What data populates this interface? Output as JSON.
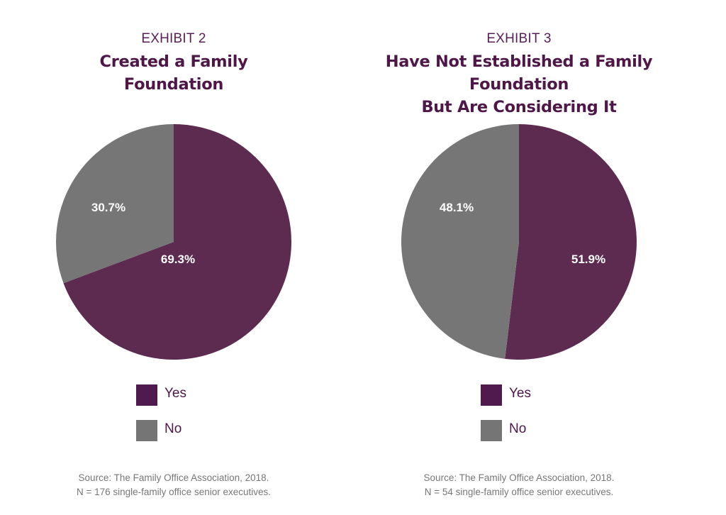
{
  "colors": {
    "yes_slice": "#5e2b50",
    "no_slice": "#767676",
    "yes_legend": "#4f1a4e",
    "no_legend": "#757575",
    "title": "#4e1748"
  },
  "chart_data": [
    {
      "type": "pie",
      "exhibit": "EXHIBIT 2",
      "title": "Created a Family Foundation",
      "title_lines": [
        "Created a Family",
        "Foundation"
      ],
      "slices": [
        {
          "label": "Yes",
          "value": 69.3,
          "display": "69.3%"
        },
        {
          "label": "No",
          "value": 30.7,
          "display": "30.7%"
        }
      ],
      "legend": [
        "Yes",
        "No"
      ],
      "legend_position": "bottom",
      "source": "Source: The Family Office Association, 2018.",
      "note": "N = 176 single-family office senior executives."
    },
    {
      "type": "pie",
      "exhibit": "EXHIBIT 3",
      "title": "Have Not Established a Family Foundation But Are Considering It",
      "title_lines": [
        "Have Not Established a Family Foundation",
        "But Are Considering It"
      ],
      "slices": [
        {
          "label": "Yes",
          "value": 51.9,
          "display": "51.9%"
        },
        {
          "label": "No",
          "value": 48.1,
          "display": "48.1%"
        }
      ],
      "legend": [
        "Yes",
        "No"
      ],
      "legend_position": "bottom",
      "source": "Source: The Family Office Association, 2018.",
      "note": "N = 54 single-family office senior executives."
    }
  ]
}
